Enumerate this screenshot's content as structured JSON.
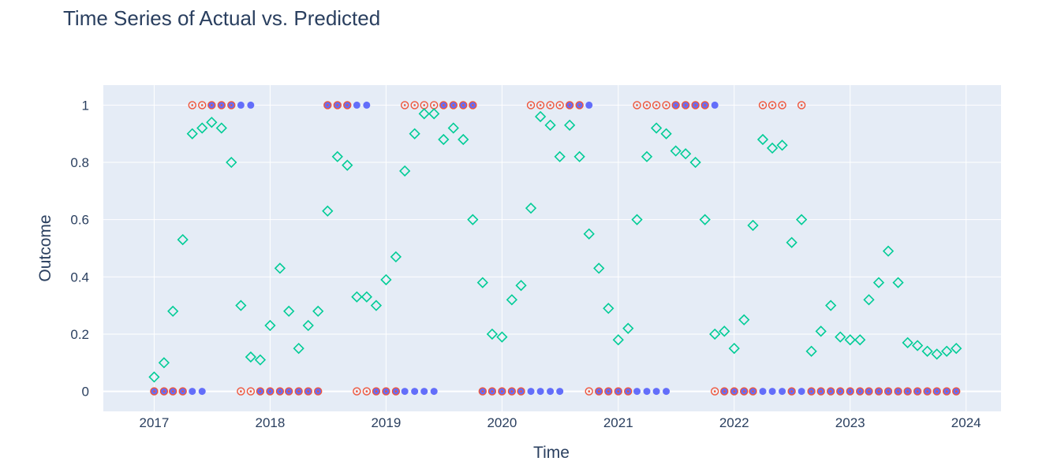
{
  "chart_data": {
    "type": "scatter",
    "title": "Time Series of Actual vs. Predicted",
    "xlabel": "Time",
    "ylabel": "Outcome",
    "xlim": [
      "2016-07-25",
      "2024-04-20"
    ],
    "ylim": [
      -0.07,
      1.07
    ],
    "x_ticks": [
      "2017",
      "2018",
      "2019",
      "2020",
      "2021",
      "2022",
      "2023",
      "2024"
    ],
    "y_ticks": [
      "0",
      "0.2",
      "0.4",
      "0.6",
      "0.8",
      "1"
    ],
    "grid": true,
    "legend": "none",
    "colors": {
      "plot_bg": "#e5ecf6",
      "grid": "#ffffff",
      "text": "#2a3f5f",
      "actual": "#636efa",
      "predicted_label": "#ef553b",
      "probability": "#00cc96"
    },
    "x": [
      "2017-01",
      "2017-02",
      "2017-03",
      "2017-04",
      "2017-05",
      "2017-06",
      "2017-07",
      "2017-08",
      "2017-09",
      "2017-10",
      "2017-11",
      "2017-12",
      "2018-01",
      "2018-02",
      "2018-03",
      "2018-04",
      "2018-05",
      "2018-06",
      "2018-07",
      "2018-08",
      "2018-09",
      "2018-10",
      "2018-11",
      "2018-12",
      "2019-01",
      "2019-02",
      "2019-03",
      "2019-04",
      "2019-05",
      "2019-06",
      "2019-07",
      "2019-08",
      "2019-09",
      "2019-10",
      "2019-11",
      "2019-12",
      "2020-01",
      "2020-02",
      "2020-03",
      "2020-04",
      "2020-05",
      "2020-06",
      "2020-07",
      "2020-08",
      "2020-09",
      "2020-10",
      "2020-11",
      "2020-12",
      "2021-01",
      "2021-02",
      "2021-03",
      "2021-04",
      "2021-05",
      "2021-06",
      "2021-07",
      "2021-08",
      "2021-09",
      "2021-10",
      "2021-11",
      "2021-12",
      "2022-01",
      "2022-02",
      "2022-03",
      "2022-04",
      "2022-05",
      "2022-06",
      "2022-07",
      "2022-08",
      "2022-09",
      "2022-10",
      "2022-11",
      "2022-12",
      "2023-01",
      "2023-02",
      "2023-03",
      "2023-04",
      "2023-05",
      "2023-06",
      "2023-07",
      "2023-08",
      "2023-09",
      "2023-10",
      "2023-11",
      "2023-12"
    ],
    "series": [
      {
        "marker": "circle",
        "values": [
          0,
          0,
          0,
          0,
          0,
          0,
          1,
          1,
          1,
          1,
          1,
          0,
          0,
          0,
          0,
          0,
          0,
          0,
          1,
          1,
          1,
          1,
          1,
          0,
          0,
          0,
          0,
          0,
          0,
          0,
          1,
          1,
          1,
          1,
          0,
          0,
          0,
          0,
          0,
          0,
          0,
          0,
          0,
          1,
          1,
          1,
          0,
          0,
          0,
          0,
          0,
          0,
          0,
          0,
          1,
          1,
          1,
          1,
          1,
          0,
          0,
          0,
          0,
          0,
          0,
          0,
          0,
          0,
          0,
          0,
          0,
          0,
          0,
          0,
          0,
          0,
          0,
          0,
          0,
          0,
          0,
          0,
          0,
          0
        ]
      },
      {
        "marker": "circle-open-dot",
        "values": [
          0,
          0,
          0,
          0,
          1,
          1,
          1,
          1,
          1,
          0,
          0,
          0,
          0,
          0,
          0,
          0,
          0,
          0,
          1,
          1,
          1,
          0,
          0,
          0,
          0,
          0,
          1,
          1,
          1,
          1,
          1,
          1,
          1,
          1,
          0,
          0,
          0,
          0,
          0,
          1,
          1,
          1,
          1,
          1,
          1,
          0,
          0,
          0,
          0,
          0,
          1,
          1,
          1,
          1,
          1,
          1,
          1,
          1,
          0,
          0,
          0,
          0,
          0,
          1,
          1,
          1,
          0,
          1,
          0,
          0,
          0,
          0,
          0,
          0,
          0,
          0,
          0,
          0,
          0,
          0,
          0,
          0,
          0,
          0
        ],
        "x_override": {
          "2017-10": "2017-10",
          "2018-09": "2018-09"
        }
      },
      {
        "marker": "diamond-open",
        "values": [
          0.05,
          0.1,
          0.28,
          0.53,
          0.9,
          0.92,
          0.94,
          0.92,
          0.8,
          0.3,
          0.12,
          0.11,
          0.23,
          0.43,
          0.28,
          0.15,
          0.23,
          0.28,
          0.63,
          0.82,
          0.79,
          0.33,
          0.33,
          0.3,
          0.39,
          0.47,
          0.77,
          0.9,
          0.97,
          0.97,
          0.88,
          0.92,
          0.88,
          0.6,
          0.38,
          0.2,
          0.19,
          0.32,
          0.37,
          0.64,
          0.96,
          0.93,
          0.82,
          0.93,
          0.82,
          0.55,
          0.43,
          0.29,
          0.18,
          0.22,
          0.6,
          0.82,
          0.92,
          0.9,
          0.84,
          0.83,
          0.8,
          0.6,
          0.2,
          0.21,
          0.15,
          0.25,
          0.58,
          0.88,
          0.85,
          0.86,
          0.52,
          0.6,
          0.14,
          0.21,
          0.3,
          0.19,
          0.18,
          0.18,
          0.32,
          0.38,
          0.49,
          0.38,
          0.17,
          0.16,
          0.14,
          0.13,
          0.14,
          0.15
        ]
      }
    ]
  }
}
